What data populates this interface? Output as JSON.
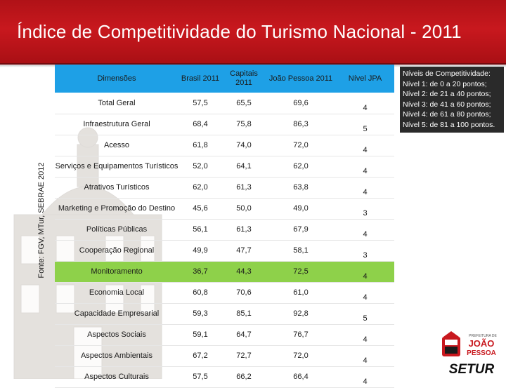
{
  "slide": {
    "title": "Índice de Competitividade do Turismo Nacional - 2011",
    "source": "Fonte: FGV, MTur, SEBRAE 2012"
  },
  "table": {
    "headers": {
      "dimensoes": "Dimensões",
      "brasil": "Brasil 2011",
      "capitais": "Capitais 2011",
      "joao_pessoa": "João Pessoa 2011",
      "nivel": "Nível JPA"
    },
    "rows": [
      {
        "dimensao": "Total Geral",
        "brasil": "57,5",
        "capitais": "65,5",
        "joao_pessoa": "69,6",
        "nivel": "4"
      },
      {
        "dimensao": "Infraestrutura Geral",
        "brasil": "68,4",
        "capitais": "75,8",
        "joao_pessoa": "86,3",
        "nivel": "5"
      },
      {
        "dimensao": "Acesso",
        "brasil": "61,8",
        "capitais": "74,0",
        "joao_pessoa": "72,0",
        "nivel": "4"
      },
      {
        "dimensao": "Serviços e Equipamentos Turísticos",
        "brasil": "52,0",
        "capitais": "64,1",
        "joao_pessoa": "62,0",
        "nivel": "4"
      },
      {
        "dimensao": "Atrativos Turísticos",
        "brasil": "62,0",
        "capitais": "61,3",
        "joao_pessoa": "63,8",
        "nivel": "4"
      },
      {
        "dimensao": "Marketing e Promoção do Destino",
        "brasil": "45,6",
        "capitais": "50,0",
        "joao_pessoa": "49,0",
        "nivel": "3"
      },
      {
        "dimensao": "Políticas Públicas",
        "brasil": "56,1",
        "capitais": "61,3",
        "joao_pessoa": "67,9",
        "nivel": "4"
      },
      {
        "dimensao": "Cooperação Regional",
        "brasil": "49,9",
        "capitais": "47,7",
        "joao_pessoa": "58,1",
        "nivel": "3"
      },
      {
        "dimensao": "Monitoramento",
        "brasil": "36,7",
        "capitais": "44,3",
        "joao_pessoa": "72,5",
        "nivel": "4"
      },
      {
        "dimensao": "Economia Local",
        "brasil": "60,8",
        "capitais": "70,6",
        "joao_pessoa": "61,0",
        "nivel": "4"
      },
      {
        "dimensao": "Capacidade Empresarial",
        "brasil": "59,3",
        "capitais": "85,1",
        "joao_pessoa": "92,8",
        "nivel": "5"
      },
      {
        "dimensao": "Aspectos Sociais",
        "brasil": "59,1",
        "capitais": "64,7",
        "joao_pessoa": "76,7",
        "nivel": "4"
      },
      {
        "dimensao": "Aspectos Ambientais",
        "brasil": "67,2",
        "capitais": "72,7",
        "joao_pessoa": "72,0",
        "nivel": "4"
      },
      {
        "dimensao": "Aspectos Culturais",
        "brasil": "57,5",
        "capitais": "66,2",
        "joao_pessoa": "66,4",
        "nivel": "4"
      }
    ],
    "highlight_row": "Monitoramento"
  },
  "legend": {
    "title": "Níveis de Competitividade:",
    "items": [
      "Nível 1: de 0 a 20 pontos;",
      "Nível 2: de 21 a 40 pontos;",
      "Nível 3: de 41 a 60 pontos;",
      "Nível 4: de 61 a 80 pontos;",
      "Nível 5: de 81 a 100 pontos."
    ]
  },
  "logo": {
    "line1": "PREFEITURA DE",
    "line2": "JOÃO",
    "line3": "PESSOA",
    "org": "SETUR"
  },
  "colors": {
    "header_red": "#c8181e",
    "table_header_blue": "#1ea0e6",
    "highlight_green": "#8ed14a",
    "legend_bg": "#2a2a2a"
  }
}
